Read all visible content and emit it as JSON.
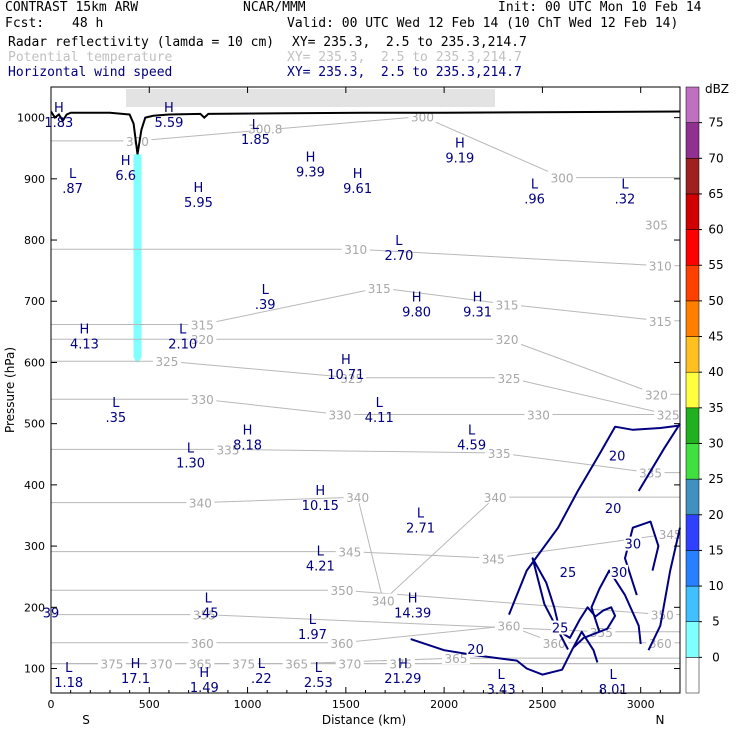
{
  "header": {
    "model": "CONTRAST 15km ARW",
    "center": "NCAR/MMM",
    "init": "Init: 00 UTC Mon 10 Feb 14",
    "fcst_label": "Fcst:",
    "fcst_value": "48 h",
    "valid": "Valid: 00 UTC Wed 12 Feb 14 (10 ChT Wed 12 Feb 14)",
    "fields": [
      {
        "name": "Radar reflectivity (lamda = 10 cm)",
        "xy": "XY= 235.3,  2.5 to 235.3,214.7",
        "color": "#000000"
      },
      {
        "name": "Potential temperature",
        "xy": "XY= 235.3,  2.5 to 235.3,214.7",
        "color": "#c0c0c0"
      },
      {
        "name": "Horizontal wind speed",
        "xy": "XY= 235.3,  2.5 to 235.3,214.7",
        "color": "#000080"
      }
    ]
  },
  "chart_data": {
    "type": "cross-section",
    "xlabel": "Distance (km)",
    "ylabel": "Pressure (hPa)",
    "xlim": [
      0,
      3200
    ],
    "ylim": [
      1050,
      60
    ],
    "xticks": [
      0,
      500,
      1000,
      1500,
      2000,
      2500,
      3000
    ],
    "yticks": [
      100,
      200,
      300,
      400,
      500,
      600,
      700,
      800,
      900,
      1000
    ],
    "x_end_labels": {
      "left": "S",
      "right": "N"
    },
    "colorbar": {
      "title": "dBZ",
      "levels": [
        0,
        5,
        10,
        15,
        20,
        25,
        30,
        35,
        40,
        45,
        50,
        55,
        60,
        65,
        70,
        75
      ],
      "colors": [
        "#ffffff",
        "#80ffff",
        "#40c0ff",
        "#2880ff",
        "#3040ff",
        "#4090c0",
        "#40e040",
        "#20b020",
        "#ffff40",
        "#ffc020",
        "#ff8000",
        "#ff4000",
        "#ff0000",
        "#d00000",
        "#a02020",
        "#903090",
        "#c070c0"
      ]
    },
    "theta_labels": [
      {
        "x": 310,
        "p": 108,
        "text": "375"
      },
      {
        "x": 560,
        "p": 108,
        "text": "370"
      },
      {
        "x": 760,
        "p": 108,
        "text": "365"
      },
      {
        "x": 980,
        "p": 108,
        "text": "375"
      },
      {
        "x": 1250,
        "p": 108,
        "text": "365"
      },
      {
        "x": 1520,
        "p": 108,
        "text": "370"
      },
      {
        "x": 1780,
        "p": 108,
        "text": "375"
      },
      {
        "x": 2060,
        "p": 117,
        "text": "365"
      },
      {
        "x": 770,
        "p": 142,
        "text": "360"
      },
      {
        "x": 1480,
        "p": 142,
        "text": "360"
      },
      {
        "x": 2330,
        "p": 170,
        "text": "360"
      },
      {
        "x": 2560,
        "p": 142,
        "text": "360"
      },
      {
        "x": 3100,
        "p": 142,
        "text": "360"
      },
      {
        "x": 780,
        "p": 188,
        "text": "355"
      },
      {
        "x": 1480,
        "p": 228,
        "text": "350"
      },
      {
        "x": 1690,
        "p": 211,
        "text": "340"
      },
      {
        "x": 2800,
        "p": 160,
        "text": "355"
      },
      {
        "x": 3110,
        "p": 188,
        "text": "350"
      },
      {
        "x": 2250,
        "p": 280,
        "text": "345"
      },
      {
        "x": 1520,
        "p": 291,
        "text": "345"
      },
      {
        "x": 3150,
        "p": 320,
        "text": "345"
      },
      {
        "x": 760,
        "p": 371,
        "text": "340"
      },
      {
        "x": 1560,
        "p": 380,
        "text": "340"
      },
      {
        "x": 2260,
        "p": 380,
        "text": "340"
      },
      {
        "x": 3050,
        "p": 420,
        "text": "335"
      },
      {
        "x": 900,
        "p": 458,
        "text": "335"
      },
      {
        "x": 2280,
        "p": 452,
        "text": "335"
      },
      {
        "x": 1470,
        "p": 515,
        "text": "330"
      },
      {
        "x": 2480,
        "p": 515,
        "text": "330"
      },
      {
        "x": 3140,
        "p": 515,
        "text": "325"
      },
      {
        "x": 770,
        "p": 540,
        "text": "330"
      },
      {
        "x": 1530,
        "p": 575,
        "text": "325"
      },
      {
        "x": 2330,
        "p": 575,
        "text": "325"
      },
      {
        "x": 3080,
        "p": 548,
        "text": "320"
      },
      {
        "x": 590,
        "p": 602,
        "text": "325"
      },
      {
        "x": 770,
        "p": 638,
        "text": "320"
      },
      {
        "x": 2320,
        "p": 638,
        "text": "320"
      },
      {
        "x": 3100,
        "p": 668,
        "text": "315"
      },
      {
        "x": 770,
        "p": 662,
        "text": "315"
      },
      {
        "x": 2320,
        "p": 695,
        "text": "315"
      },
      {
        "x": 1670,
        "p": 722,
        "text": "315"
      },
      {
        "x": 3100,
        "p": 758,
        "text": "310"
      },
      {
        "x": 1550,
        "p": 785,
        "text": "310"
      },
      {
        "x": 3080,
        "p": 825,
        "text": "305"
      },
      {
        "x": 2600,
        "p": 902,
        "text": "300"
      },
      {
        "x": 1090,
        "p": 982,
        "text": "300.8"
      },
      {
        "x": 1890,
        "p": 1002,
        "text": "300"
      },
      {
        "x": 440,
        "p": 962,
        "text": "300"
      }
    ],
    "extrema": [
      {
        "x": 90,
        "p": 88,
        "kind": "L",
        "value": "1.18"
      },
      {
        "x": 430,
        "p": 94,
        "kind": "H",
        "value": "17.1"
      },
      {
        "x": 780,
        "p": 80,
        "kind": "H",
        "value": "1.49"
      },
      {
        "x": 1070,
        "p": 94,
        "kind": "L",
        "value": ".22"
      },
      {
        "x": 1360,
        "p": 88,
        "kind": "L",
        "value": "2.53"
      },
      {
        "x": 1790,
        "p": 94,
        "kind": "H",
        "value": "21.29"
      },
      {
        "x": 2290,
        "p": 76,
        "kind": "L",
        "value": "3.43"
      },
      {
        "x": 2860,
        "p": 76,
        "kind": "L",
        "value": "8.01"
      },
      {
        "x": 0,
        "p": 201,
        "kind": "",
        "value": "39"
      },
      {
        "x": 800,
        "p": 201,
        "kind": "L",
        "value": ".45"
      },
      {
        "x": 1330,
        "p": 166,
        "kind": "L",
        "value": "1.97"
      },
      {
        "x": 1840,
        "p": 201,
        "kind": "H",
        "value": "14.39"
      },
      {
        "x": 1370,
        "p": 278,
        "kind": "L",
        "value": "4.21"
      },
      {
        "x": 1880,
        "p": 340,
        "kind": "L",
        "value": "2.71"
      },
      {
        "x": 1370,
        "p": 377,
        "kind": "H",
        "value": "10.15"
      },
      {
        "x": 710,
        "p": 446,
        "kind": "L",
        "value": "1.30"
      },
      {
        "x": 1000,
        "p": 476,
        "kind": "H",
        "value": "8.18"
      },
      {
        "x": 2140,
        "p": 476,
        "kind": "L",
        "value": "4.59"
      },
      {
        "x": 330,
        "p": 521,
        "kind": "L",
        "value": ".35"
      },
      {
        "x": 1670,
        "p": 521,
        "kind": "L",
        "value": "4.11"
      },
      {
        "x": 1500,
        "p": 591,
        "kind": "H",
        "value": "10.71"
      },
      {
        "x": 170,
        "p": 641,
        "kind": "H",
        "value": "4.13"
      },
      {
        "x": 670,
        "p": 641,
        "kind": "L",
        "value": "2.10"
      },
      {
        "x": 1090,
        "p": 705,
        "kind": "L",
        "value": ".39"
      },
      {
        "x": 1860,
        "p": 693,
        "kind": "H",
        "value": "9.80"
      },
      {
        "x": 2170,
        "p": 693,
        "kind": "H",
        "value": "9.31"
      },
      {
        "x": 1770,
        "p": 785,
        "kind": "L",
        "value": "2.70"
      },
      {
        "x": 750,
        "p": 872,
        "kind": "H",
        "value": "5.95"
      },
      {
        "x": 110,
        "p": 895,
        "kind": "L",
        "value": ".87"
      },
      {
        "x": 380,
        "p": 916,
        "kind": "H",
        "value": "6.6"
      },
      {
        "x": 1560,
        "p": 895,
        "kind": "H",
        "value": "9.61"
      },
      {
        "x": 2460,
        "p": 878,
        "kind": "L",
        "value": ".96"
      },
      {
        "x": 2920,
        "p": 878,
        "kind": "L",
        "value": ".32"
      },
      {
        "x": 1320,
        "p": 922,
        "kind": "H",
        "value": "9.39"
      },
      {
        "x": 2080,
        "p": 945,
        "kind": "H",
        "value": "9.19"
      },
      {
        "x": 1040,
        "p": 975,
        "kind": "L",
        "value": "1.85"
      },
      {
        "x": 40,
        "p": 1003,
        "kind": "H",
        "value": "1.83"
      },
      {
        "x": 600,
        "p": 1003,
        "kind": "H",
        "value": "5.59"
      }
    ],
    "wind_labels": [
      {
        "x": 2160,
        "p": 132,
        "text": "20"
      },
      {
        "x": 2590,
        "p": 167,
        "text": "25"
      },
      {
        "x": 2630,
        "p": 258,
        "text": "25"
      },
      {
        "x": 2890,
        "p": 258,
        "text": "30"
      },
      {
        "x": 2960,
        "p": 304,
        "text": "30"
      },
      {
        "x": 2860,
        "p": 362,
        "text": "20"
      },
      {
        "x": 2880,
        "p": 448,
        "text": "20"
      }
    ],
    "wind_contours": [
      {
        "level": 20,
        "points": [
          [
            1830,
            148
          ],
          [
            2000,
            130
          ],
          [
            2150,
            122
          ],
          [
            2370,
            113
          ],
          [
            2420,
            100
          ],
          [
            2500,
            90
          ],
          [
            2600,
            98
          ],
          [
            2650,
            130
          ],
          [
            2700,
            160
          ],
          [
            2760,
            130
          ],
          [
            2780,
            110
          ]
        ]
      },
      {
        "level": 20,
        "points": [
          [
            2330,
            188
          ],
          [
            2420,
            260
          ],
          [
            2580,
            330
          ],
          [
            2680,
            390
          ],
          [
            2790,
            450
          ],
          [
            2870,
            495
          ],
          [
            2960,
            490
          ],
          [
            3100,
            493
          ],
          [
            3200,
            497
          ]
        ]
      },
      {
        "level": 25,
        "points": [
          [
            2630,
            131
          ],
          [
            2510,
            205
          ],
          [
            2450,
            280
          ],
          [
            2520,
            240
          ],
          [
            2560,
            200
          ],
          [
            2590,
            160
          ],
          [
            2640,
            150
          ],
          [
            2690,
            180
          ],
          [
            2730,
            200
          ],
          [
            2770,
            185
          ],
          [
            2810,
            195
          ],
          [
            2850,
            200
          ],
          [
            2870,
            186
          ],
          [
            2830,
            165
          ],
          [
            2710,
            150
          ],
          [
            2660,
            135
          ]
        ]
      },
      {
        "level": 30,
        "points": [
          [
            2790,
            160
          ],
          [
            2750,
            200
          ],
          [
            2790,
            230
          ],
          [
            2840,
            260
          ],
          [
            2920,
            220
          ],
          [
            2990,
            170
          ],
          [
            3000,
            140
          ]
        ]
      },
      {
        "level": 30,
        "points": [
          [
            2980,
            220
          ],
          [
            2920,
            280
          ],
          [
            2960,
            330
          ],
          [
            3050,
            340
          ],
          [
            3090,
            300
          ],
          [
            3060,
            260
          ]
        ]
      },
      {
        "level": 20,
        "points": [
          [
            3040,
            130
          ],
          [
            3100,
            170
          ],
          [
            3150,
            260
          ],
          [
            3200,
            330
          ]
        ]
      },
      {
        "level": 25,
        "points": [
          [
            2990,
            390
          ],
          [
            3120,
            460
          ],
          [
            3200,
            500
          ]
        ]
      }
    ],
    "reflectivity_column": {
      "x": 440,
      "p_top": 580,
      "p_bottom": 940
    },
    "terrain": [
      [
        0,
        1010
      ],
      [
        20,
        1000
      ],
      [
        40,
        1005
      ],
      [
        60,
        995
      ],
      [
        80,
        1005
      ],
      [
        100,
        1008
      ],
      [
        300,
        1008
      ],
      [
        400,
        1005
      ],
      [
        420,
        990
      ],
      [
        440,
        940
      ],
      [
        460,
        980
      ],
      [
        480,
        1000
      ],
      [
        520,
        1003
      ],
      [
        600,
        1005
      ],
      [
        760,
        1006
      ],
      [
        780,
        1000
      ],
      [
        800,
        1006
      ],
      [
        1200,
        1007
      ],
      [
        1600,
        1008
      ],
      [
        2000,
        1008
      ],
      [
        2600,
        1009
      ],
      [
        3200,
        1010
      ]
    ]
  }
}
